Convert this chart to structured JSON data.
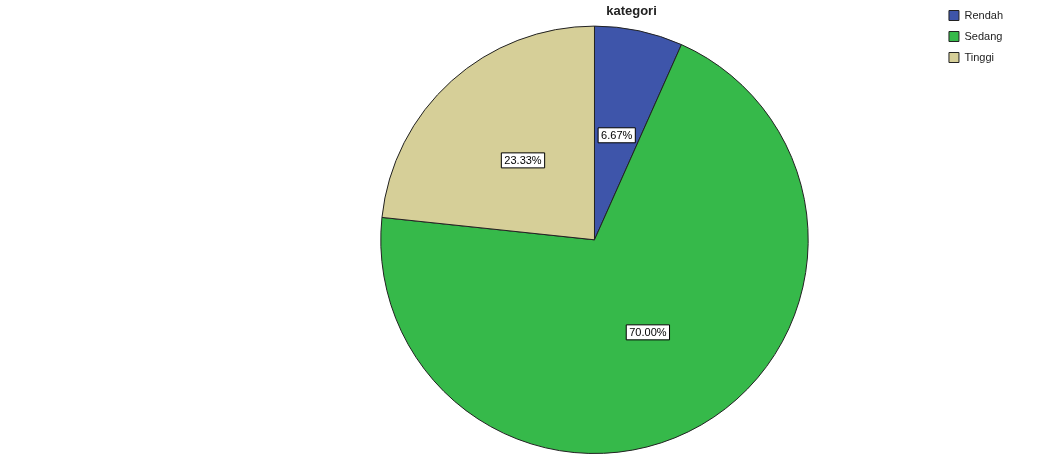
{
  "chart_data": {
    "type": "pie",
    "title": "kategori",
    "categories": [
      "Rendah",
      "Sedang",
      "Tinggi"
    ],
    "values": [
      6.67,
      70.0,
      23.33
    ],
    "colors": [
      "#3e55aa",
      "#36b94a",
      "#d6cf98"
    ],
    "value_labels": [
      "6.67%",
      "70.00%",
      "23.33%"
    ],
    "legend": "top right"
  }
}
